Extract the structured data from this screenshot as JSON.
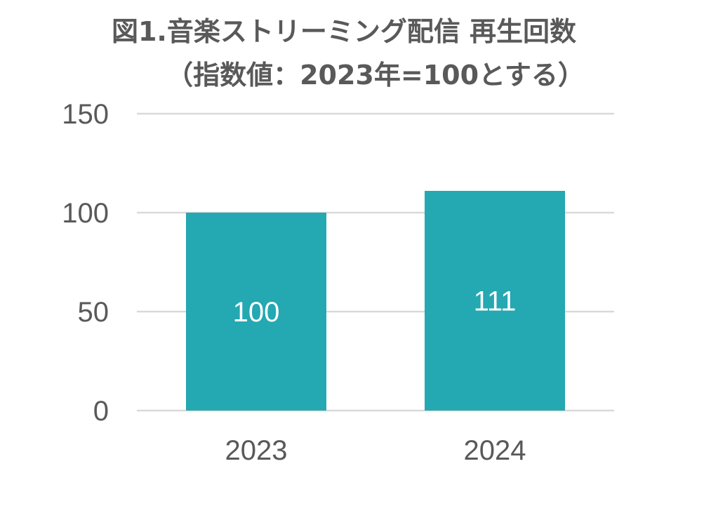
{
  "chart_data": {
    "type": "bar",
    "title_line1": "図1.音楽ストリーミング配信 再生回数",
    "title_line2": "（指数値：2023年=100とする）",
    "categories": [
      "2023",
      "2024"
    ],
    "values": [
      100,
      111
    ],
    "data_labels": [
      "100",
      "111"
    ],
    "ylim": [
      0,
      150
    ],
    "yticks": [
      0,
      50,
      100,
      150
    ],
    "grid": true,
    "bar_color": "#24A8B2",
    "gridline_color": "#D9D9D9",
    "text_color": "#595959",
    "label_color": "#FFFFFF"
  }
}
